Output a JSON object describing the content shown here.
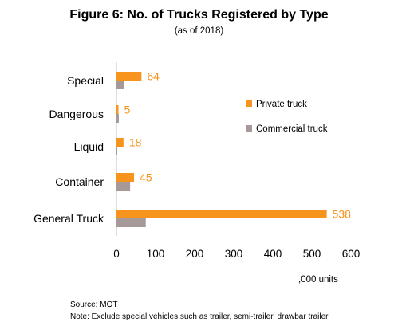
{
  "chart_data": {
    "type": "bar",
    "orientation": "horizontal",
    "title": "Figure 6: No. of Trucks Registered by Type",
    "subtitle": "(as of  2018)",
    "categories": [
      "Special",
      "Dangerous",
      "Liquid",
      "Container",
      "General Truck"
    ],
    "series": [
      {
        "name": "Private truck",
        "color": "#F7941D",
        "values": [
          64,
          5,
          18,
          45,
          538
        ]
      },
      {
        "name": "Commercial truck",
        "color": "#A69A98",
        "values": [
          20,
          6,
          2,
          35,
          75
        ]
      }
    ],
    "data_labels": [
      "64",
      "5",
      "18",
      "45",
      "538"
    ],
    "data_label_color": "#F7941D",
    "xticks": [
      "0",
      "100",
      "200",
      "300",
      "400",
      "500",
      "600"
    ],
    "xlim": [
      0,
      600
    ],
    "unit_label": ",000 units",
    "legend_position": "right",
    "grid": false
  },
  "notes": {
    "source": "Source: MOT",
    "note": "Note: Exclude special vehicles such as trailer, semi-trailer, drawbar trailer"
  }
}
